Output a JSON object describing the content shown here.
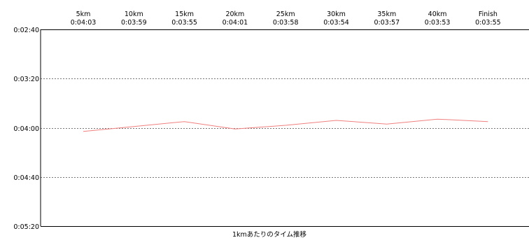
{
  "chart_data": {
    "type": "line",
    "categories": [
      "5km",
      "10km",
      "15km",
      "20km",
      "25km",
      "30km",
      "35km",
      "40km",
      "Finish"
    ],
    "category_times": [
      "0:04:03",
      "0:03:59",
      "0:03:55",
      "0:04:01",
      "0:03:58",
      "0:03:54",
      "0:03:57",
      "0:03:53",
      "0:03:55"
    ],
    "series": [
      {
        "values": [
          "0:04:03",
          "0:03:59",
          "0:03:55",
          "0:04:01",
          "0:03:58",
          "0:03:54",
          "0:03:57",
          "0:03:53",
          "0:03:55"
        ],
        "color": "#f08080"
      }
    ],
    "y_ticks": [
      "0:02:40",
      "0:03:20",
      "0:04:00",
      "0:04:40",
      "0:05:20"
    ],
    "ylim": [
      "0:02:40",
      "0:05:20"
    ],
    "y_inverted": true,
    "grid": "horizontal-dashed",
    "xlabel": "1kmあたりのタイム推移"
  }
}
